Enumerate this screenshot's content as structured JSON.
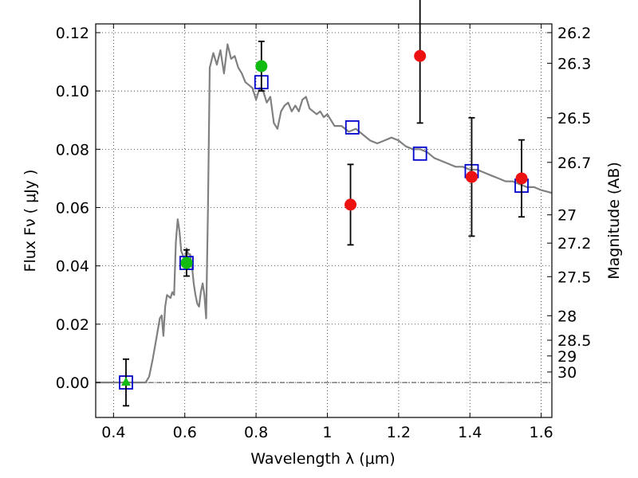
{
  "chart_data": {
    "type": "scatter",
    "xlabel": "Wavelength  λ (μm)",
    "ylabel": "Flux  Fν  ( μJy )",
    "y2label": "Magnitude (AB)",
    "xlim": [
      0.35,
      1.63
    ],
    "ylim": [
      -0.012,
      0.123
    ],
    "xticks": [
      0.4,
      0.6,
      0.8,
      1.0,
      1.2,
      1.4,
      1.6
    ],
    "xtick_labels": [
      "0.4",
      "0.6",
      "0.8",
      "1",
      "1.2",
      "1.4",
      "1.6"
    ],
    "yticks": [
      0.0,
      0.02,
      0.04,
      0.06,
      0.08,
      0.1,
      0.12
    ],
    "ytick_labels": [
      "0.00",
      "0.02",
      "0.04",
      "0.06",
      "0.08",
      "0.10",
      "0.12"
    ],
    "y2ticks": [
      {
        "label": "26.2",
        "flux": 0.12
      },
      {
        "label": "26.3",
        "flux": 0.1095
      },
      {
        "label": "26.5",
        "flux": 0.0908
      },
      {
        "label": "26.7",
        "flux": 0.0755
      },
      {
        "label": "27",
        "flux": 0.0575
      },
      {
        "label": "27.2",
        "flux": 0.0478
      },
      {
        "label": "27.5",
        "flux": 0.0363
      },
      {
        "label": "28",
        "flux": 0.0229
      },
      {
        "label": "28.5",
        "flux": 0.0145
      },
      {
        "label": "29",
        "flux": 0.0091
      },
      {
        "label": "30",
        "flux": 0.0036
      }
    ],
    "grid": true,
    "colors": {
      "model": "#808080",
      "photometry": "#ee1111",
      "detection": "#11bb11",
      "model_box": "#0000cc",
      "errorbar": "#000000",
      "zero_line": "#000000"
    },
    "series": [
      {
        "type": "line",
        "x": [
          0.35,
          0.4,
          0.45,
          0.49,
          0.5,
          0.51,
          0.52,
          0.53,
          0.535,
          0.54,
          0.545,
          0.55,
          0.56,
          0.565,
          0.57,
          0.575,
          0.58,
          0.585,
          0.59,
          0.6,
          0.605,
          0.61,
          0.615,
          0.62,
          0.625,
          0.63,
          0.635,
          0.64,
          0.645,
          0.65,
          0.655,
          0.66,
          0.665,
          0.67,
          0.68,
          0.69,
          0.7,
          0.71,
          0.72,
          0.73,
          0.74,
          0.75,
          0.76,
          0.77,
          0.78,
          0.79,
          0.8,
          0.81,
          0.82,
          0.83,
          0.84,
          0.85,
          0.86,
          0.87,
          0.88,
          0.89,
          0.9,
          0.91,
          0.92,
          0.93,
          0.94,
          0.95,
          0.96,
          0.97,
          0.98,
          0.99,
          1.0,
          1.02,
          1.04,
          1.06,
          1.08,
          1.1,
          1.12,
          1.14,
          1.16,
          1.18,
          1.2,
          1.22,
          1.24,
          1.26,
          1.28,
          1.3,
          1.32,
          1.34,
          1.36,
          1.38,
          1.4,
          1.42,
          1.44,
          1.46,
          1.48,
          1.5,
          1.52,
          1.54,
          1.56,
          1.58,
          1.6,
          1.63
        ],
        "y": [
          0.0,
          0.0,
          0.0,
          0.0,
          0.002,
          0.008,
          0.015,
          0.022,
          0.023,
          0.016,
          0.026,
          0.03,
          0.029,
          0.031,
          0.03,
          0.048,
          0.056,
          0.052,
          0.045,
          0.042,
          0.046,
          0.044,
          0.044,
          0.04,
          0.034,
          0.03,
          0.027,
          0.026,
          0.031,
          0.034,
          0.03,
          0.022,
          0.06,
          0.108,
          0.113,
          0.109,
          0.114,
          0.106,
          0.116,
          0.111,
          0.112,
          0.108,
          0.106,
          0.103,
          0.102,
          0.101,
          0.097,
          0.101,
          0.1,
          0.096,
          0.098,
          0.089,
          0.087,
          0.093,
          0.095,
          0.096,
          0.093,
          0.095,
          0.093,
          0.097,
          0.098,
          0.094,
          0.093,
          0.092,
          0.093,
          0.091,
          0.092,
          0.088,
          0.088,
          0.086,
          0.087,
          0.085,
          0.083,
          0.082,
          0.083,
          0.084,
          0.083,
          0.081,
          0.08,
          0.08,
          0.079,
          0.077,
          0.076,
          0.075,
          0.074,
          0.074,
          0.073,
          0.073,
          0.072,
          0.071,
          0.07,
          0.069,
          0.069,
          0.068,
          0.067,
          0.067,
          0.066,
          0.065
        ]
      },
      {
        "type": "box",
        "x": [
          0.435,
          0.605,
          0.815,
          1.07,
          1.26,
          1.405,
          1.545
        ],
        "y": [
          0.0,
          0.041,
          0.103,
          0.0875,
          0.0785,
          0.0725,
          0.0675
        ]
      },
      {
        "type": "errorbar",
        "x": [
          0.435,
          0.605,
          0.815,
          1.065,
          1.26,
          1.405,
          1.545
        ],
        "y": [
          0.0,
          0.041,
          0.1085,
          0.061,
          0.112,
          0.0705,
          0.07
        ],
        "yerr": [
          0.008,
          0.0045,
          0.0085,
          0.0138,
          0.023,
          0.0203,
          0.0132
        ]
      },
      {
        "type": "point",
        "x": [
          0.605,
          0.815
        ],
        "y": [
          0.041,
          0.1085
        ],
        "marker": "circle"
      },
      {
        "type": "point",
        "x": [
          0.435
        ],
        "y": [
          0.0
        ],
        "marker": "triangle"
      },
      {
        "type": "point",
        "x": [
          1.065,
          1.26,
          1.405,
          1.545
        ],
        "y": [
          0.061,
          0.112,
          0.0705,
          0.07
        ],
        "marker": "circle"
      }
    ]
  }
}
